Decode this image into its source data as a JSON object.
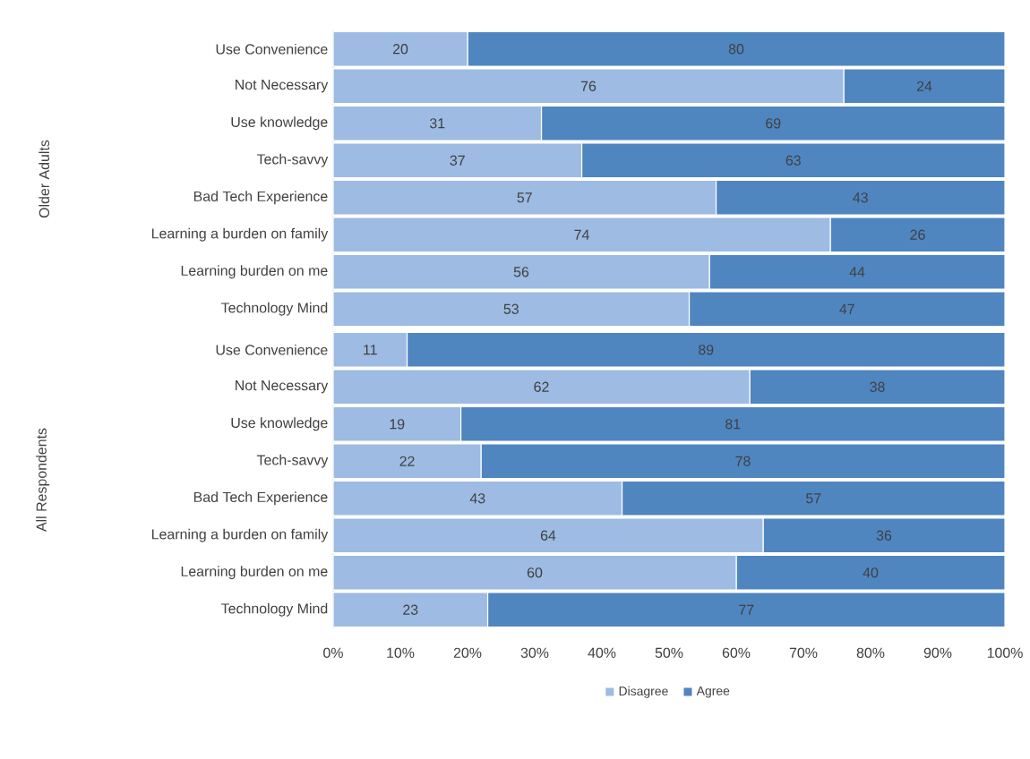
{
  "chart_data": [
    {
      "type": "bar",
      "orientation": "horizontal",
      "stacked": true,
      "ylabel": "Older Adults",
      "categories": [
        "Use Convenience",
        "Not Necessary",
        "Use knowledge",
        "Tech-savvy",
        "Bad Tech Experience",
        "Learning a burden on family",
        "Learning burden on me",
        "Technology Mind"
      ],
      "series": [
        {
          "color": "#9dbbe3",
          "values": [
            20,
            76,
            31,
            37,
            57,
            74,
            56,
            53
          ]
        },
        {
          "color": "#4f86c0",
          "values": [
            80,
            24,
            69,
            63,
            43,
            26,
            44,
            47
          ]
        }
      ],
      "xlim": [
        0,
        100
      ],
      "data_labels": true,
      "tick_labels": "y",
      "legend": false
    },
    {
      "type": "bar",
      "orientation": "horizontal",
      "stacked": true,
      "ylabel": "All Respondents",
      "categories": [
        "Use Convenience",
        "Not Necessary",
        "Use knowledge",
        "Tech-savvy",
        "Bad Tech Experience",
        "Learning a burden on family",
        "Learning burden on me",
        "Technology Mind"
      ],
      "series": [
        {
          "name": "Disagree",
          "color": "#9dbbe3",
          "values": [
            11,
            62,
            19,
            22,
            43,
            64,
            60,
            23
          ]
        },
        {
          "name": "Agree",
          "color": "#4f86c0",
          "values": [
            89,
            38,
            81,
            78,
            57,
            36,
            40,
            77
          ]
        }
      ],
      "xlim": [
        0,
        100
      ],
      "xticks": [
        {
          "value": 0,
          "label": "0%"
        },
        {
          "value": 10,
          "label": "10%"
        },
        {
          "value": 20,
          "label": "20%"
        },
        {
          "value": 30,
          "label": "30%"
        },
        {
          "value": 40,
          "label": "40%"
        },
        {
          "value": 50,
          "label": "50%"
        },
        {
          "value": 60,
          "label": "60%"
        },
        {
          "value": 70,
          "label": "70%"
        },
        {
          "value": 80,
          "label": "80%"
        },
        {
          "value": 90,
          "label": "90%"
        },
        {
          "value": 100,
          "label": "100%"
        }
      ],
      "data_labels": true,
      "legend": "bottom"
    }
  ]
}
